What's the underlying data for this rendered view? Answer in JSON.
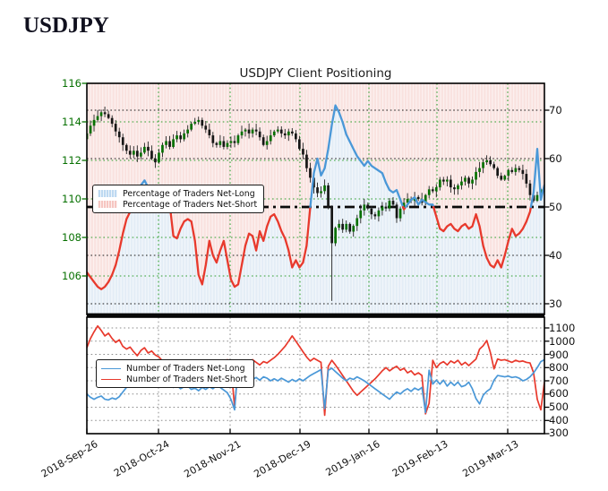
{
  "page": {
    "heading": "USDJPY"
  },
  "chart_data": [
    {
      "panel": "price-and-sentiment",
      "type": "line",
      "title": "USDJPY Client Positioning",
      "x_ticks": [
        "2018-Sep-26",
        "2018-Oct-24",
        "2018-Nov-21",
        "2018-Dec-19",
        "2019-Jan-16",
        "2019-Feb-13",
        "2019-Mar-13"
      ],
      "left_axis": {
        "ticks": [
          116,
          114,
          112,
          110,
          108,
          106
        ],
        "range": [
          104,
          116
        ],
        "color": "#067000"
      },
      "right_axis": {
        "ticks": [
          70,
          60,
          50,
          40,
          30
        ],
        "range": [
          27.8,
          75.5
        ],
        "color": "#111111"
      },
      "threshold": 50,
      "legend": [
        "Percentage of Traders Net-Long",
        "Percentage of Traders Net-Short"
      ],
      "colors": {
        "net_long_line": "#4a98d8",
        "net_short_line": "#e8392c",
        "fill_above_line_pink": "#f9e2df",
        "fill_below_line_blue": "#e4edf6",
        "candle_up": "#067000",
        "candle_down": "#161616",
        "grid_green": "#2e9e2e",
        "grid_black": "#1a1a1a"
      },
      "series": [
        {
          "name": "USDJPY daily candles (close)",
          "type": "candlestick",
          "close": [
            113.4,
            113.8,
            114.1,
            114.3,
            114.5,
            114.4,
            114.2,
            113.9,
            113.5,
            113.2,
            112.8,
            112.5,
            112.3,
            112.5,
            112.2,
            112.4,
            112.7,
            112.5,
            112.1,
            111.9,
            112.4,
            112.8,
            113.0,
            112.7,
            113.1,
            113.3,
            113.1,
            113.4,
            113.6,
            113.9,
            114.0,
            114.1,
            113.8,
            113.6,
            113.3,
            112.9,
            112.8,
            113.0,
            112.7,
            112.9,
            113.0,
            112.9,
            113.3,
            113.5,
            113.6,
            113.4,
            113.6,
            113.5,
            113.2,
            112.8,
            113.0,
            113.3,
            113.5,
            113.6,
            113.4,
            113.3,
            113.5,
            113.4,
            113.1,
            112.6,
            112.3,
            111.6,
            111.1,
            110.6,
            110.3,
            110.4,
            110.7,
            109.6,
            107.7,
            108.5,
            108.7,
            108.4,
            108.7,
            108.3,
            108.6,
            109.0,
            109.4,
            109.7,
            109.5,
            109.2,
            109.1,
            109.4,
            109.6,
            109.5,
            109.9,
            109.7,
            109.0,
            109.5,
            109.8,
            110.0,
            109.9,
            110.1,
            110.0,
            109.8,
            110.2,
            110.5,
            110.4,
            110.6,
            111.0,
            110.9,
            111.0,
            110.6,
            110.5,
            110.7,
            110.9,
            111.1,
            110.8,
            111.0,
            111.4,
            111.6,
            111.9,
            112.0,
            111.8,
            111.6,
            111.2,
            111.0,
            111.2,
            111.5,
            111.4,
            111.6,
            111.5,
            111.3,
            110.8,
            110.2,
            109.9,
            110.2,
            110.5,
            110.6
          ],
          "flash_crash": {
            "index": 68,
            "low": 104.7
          }
        },
        {
          "name": "Percentage of Traders Net-Long",
          "type": "line",
          "values": [
            36.5,
            35.5,
            34.5,
            33.5,
            33,
            33.5,
            34.5,
            36,
            38,
            41,
            44.5,
            47.5,
            49,
            50,
            52.5,
            54.5,
            55.5,
            54,
            51,
            49,
            49.5,
            50.5,
            51,
            50.5,
            44,
            43.5,
            45.5,
            47,
            47.5,
            47,
            43,
            36,
            34,
            38,
            43,
            40,
            38.5,
            41,
            43,
            39,
            35,
            33.5,
            34,
            38,
            42,
            44.5,
            44,
            41,
            45,
            43,
            46,
            48,
            48.5,
            47,
            45,
            43.5,
            41,
            37.5,
            39,
            37.5,
            38.5,
            42,
            50,
            57,
            60,
            56.5,
            58,
            62,
            67,
            71,
            69.5,
            67.5,
            65,
            63.5,
            62,
            60.5,
            59.5,
            58.5,
            59.5,
            58.5,
            58,
            57.5,
            57,
            55,
            53.5,
            53,
            53.5,
            51.5,
            49.5,
            50.5,
            51.5,
            52,
            50.5,
            51.5,
            51,
            50.5,
            50.5,
            48,
            45.5,
            45,
            46,
            46.5,
            45.5,
            45,
            46,
            46.5,
            45.5,
            46,
            48.5,
            46,
            42,
            39.5,
            38,
            37.5,
            39,
            37.5,
            40,
            43,
            45.5,
            44,
            44.5,
            45.5,
            47,
            49,
            53,
            62,
            51.5,
            54.5
          ]
        }
      ]
    },
    {
      "panel": "traders-count",
      "type": "line",
      "right_axis": {
        "ticks": [
          1100,
          1000,
          900,
          800,
          700,
          600,
          500,
          400,
          300
        ],
        "range": [
          300,
          1181
        ]
      },
      "legend": [
        "Number of Traders Net-Long",
        "Number of Traders Net-Short"
      ],
      "series": [
        {
          "name": "Number of Traders Net-Long",
          "color": "#4a98d8",
          "values": [
            600,
            575,
            560,
            575,
            585,
            560,
            555,
            570,
            560,
            580,
            615,
            650,
            690,
            730,
            765,
            740,
            720,
            780,
            800,
            760,
            700,
            670,
            660,
            680,
            650,
            665,
            640,
            655,
            660,
            635,
            645,
            625,
            650,
            635,
            655,
            640,
            665,
            650,
            630,
            610,
            560,
            480,
            830,
            730,
            700,
            720,
            710,
            725,
            705,
            730,
            720,
            700,
            715,
            700,
            720,
            705,
            690,
            710,
            695,
            715,
            700,
            720,
            740,
            755,
            770,
            785,
            490,
            780,
            795,
            770,
            745,
            720,
            700,
            720,
            710,
            730,
            715,
            700,
            680,
            660,
            640,
            620,
            600,
            580,
            560,
            590,
            615,
            600,
            625,
            640,
            620,
            645,
            630,
            650,
            460,
            780,
            675,
            705,
            675,
            705,
            660,
            690,
            665,
            690,
            655,
            665,
            690,
            640,
            565,
            525,
            590,
            620,
            640,
            705,
            740,
            735,
            730,
            735,
            725,
            730,
            720,
            700,
            710,
            730,
            760,
            800,
            845,
            860
          ]
        },
        {
          "name": "Number of Traders Net-Short",
          "color": "#e8392c",
          "values": [
            950,
            1020,
            1070,
            1115,
            1080,
            1040,
            1060,
            1020,
            990,
            1010,
            960,
            940,
            955,
            920,
            890,
            930,
            950,
            910,
            925,
            895,
            880,
            850,
            830,
            855,
            820,
            840,
            855,
            825,
            840,
            815,
            855,
            830,
            845,
            820,
            840,
            855,
            835,
            855,
            840,
            860,
            820,
            500,
            800,
            830,
            855,
            835,
            860,
            840,
            820,
            845,
            835,
            855,
            875,
            900,
            930,
            960,
            1000,
            1040,
            1000,
            960,
            920,
            880,
            850,
            870,
            855,
            840,
            440,
            810,
            855,
            820,
            780,
            740,
            700,
            660,
            620,
            590,
            615,
            640,
            665,
            690,
            715,
            745,
            775,
            800,
            775,
            795,
            810,
            780,
            795,
            760,
            775,
            745,
            760,
            740,
            450,
            530,
            855,
            800,
            830,
            845,
            820,
            850,
            835,
            855,
            820,
            840,
            815,
            840,
            865,
            940,
            965,
            1005,
            915,
            790,
            865,
            855,
            860,
            850,
            840,
            855,
            845,
            850,
            840,
            835,
            760,
            560,
            480,
            690
          ]
        }
      ]
    }
  ]
}
